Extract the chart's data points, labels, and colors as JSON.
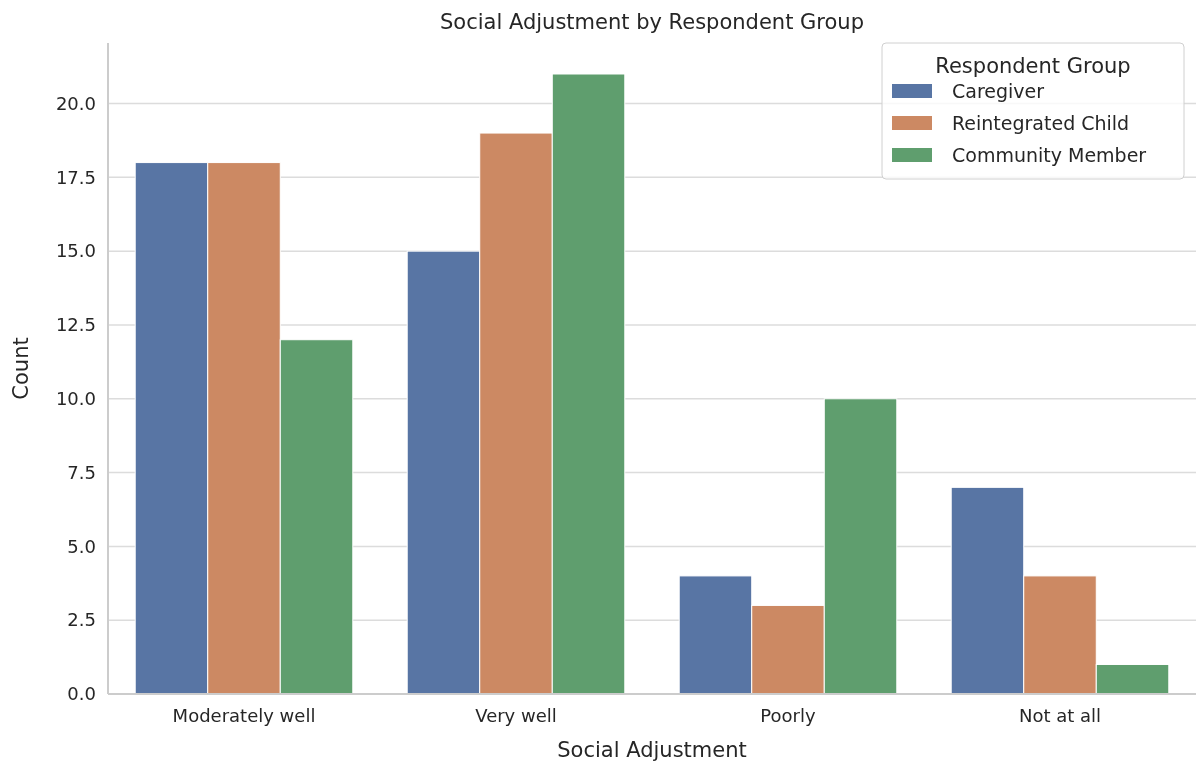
{
  "chart_data": {
    "type": "bar",
    "title": "Social Adjustment by Respondent Group",
    "xlabel": "Social Adjustment",
    "ylabel": "Count",
    "legend_title": "Respondent Group",
    "categories": [
      "Moderately well",
      "Very well",
      "Poorly",
      "Not at all"
    ],
    "series": [
      {
        "name": "Caregiver",
        "color": "#5875a4",
        "values": [
          18,
          15,
          4,
          7
        ]
      },
      {
        "name": "Reintegrated Child",
        "color": "#cc8963",
        "values": [
          18,
          19,
          3,
          4
        ]
      },
      {
        "name": "Community Member",
        "color": "#5f9e6e",
        "values": [
          12,
          21,
          10,
          1
        ]
      }
    ],
    "ylim": [
      0,
      22.05
    ],
    "yticks": [
      {
        "value": 0,
        "label": "0.0"
      },
      {
        "value": 2.5,
        "label": "2.5"
      },
      {
        "value": 5,
        "label": "5.0"
      },
      {
        "value": 7.5,
        "label": "7.5"
      },
      {
        "value": 10,
        "label": "10.0"
      },
      {
        "value": 12.5,
        "label": "12.5"
      },
      {
        "value": 15,
        "label": "15.0"
      },
      {
        "value": 17.5,
        "label": "17.5"
      },
      {
        "value": 20,
        "label": "20.0"
      }
    ],
    "grid": "y",
    "legend": "top right"
  }
}
